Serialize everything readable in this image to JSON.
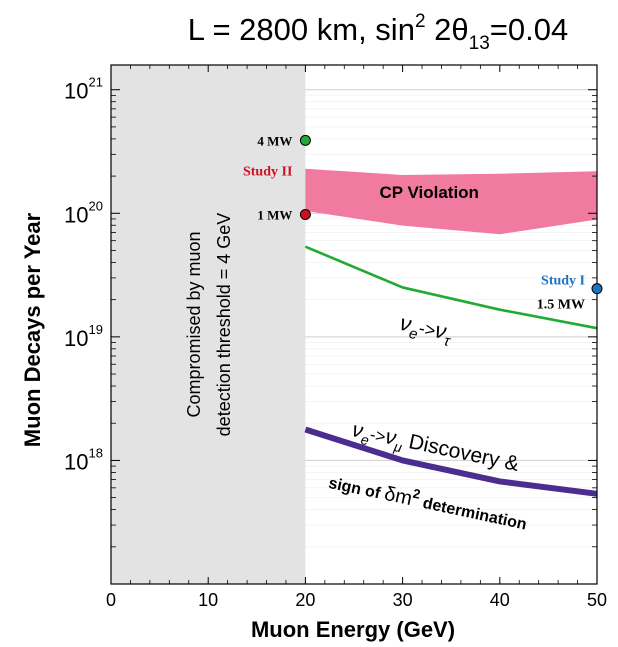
{
  "chart_data": {
    "type": "area",
    "title_main": "L = 2800 km, sin",
    "title_sup": "2",
    "title_mid": " 2θ",
    "title_sub": "13",
    "title_end": "=0.04",
    "xlabel": "Muon Energy  (GeV)",
    "ylabel": "Muon Decays per Year",
    "xlim": [
      0,
      50
    ],
    "ylim_log10": [
      17,
      21.2
    ],
    "x_ticks": [
      "0",
      "10",
      "20",
      "30",
      "40",
      "50"
    ],
    "y_ticks": [
      {
        "base": "10",
        "exp": "21",
        "value": 21
      },
      {
        "base": "10",
        "exp": "20",
        "value": 20
      },
      {
        "base": "10",
        "exp": "19",
        "value": 19
      },
      {
        "base": "10",
        "exp": "18",
        "value": 18
      }
    ],
    "excluded_region": {
      "x_range": [
        0,
        20
      ],
      "label_line1": "Compromised by muon",
      "label_line2": "detection threshold = 4 GeV"
    },
    "cp_violation_band": {
      "label": "CP  Violation",
      "x": [
        20,
        30,
        40,
        50
      ],
      "upper_log10": [
        20.36,
        20.31,
        20.32,
        20.34
      ],
      "lower_log10": [
        20.02,
        19.9,
        19.83,
        19.95
      ]
    },
    "series": [
      {
        "id": "nue_nutau",
        "label_main": "ν",
        "label_sub1": "e",
        "label_arrow": "->",
        "label_main2": "ν",
        "label_sub2": "τ",
        "x": [
          20,
          30,
          40,
          50
        ],
        "y_log10": [
          19.73,
          19.4,
          19.22,
          19.07
        ],
        "color": "#22aa33"
      },
      {
        "id": "nue_numu",
        "label_main": "ν",
        "label_sub1": "e",
        "label_arrow": "->",
        "label_main2": "ν",
        "label_sub2": "μ",
        "label_rest": " Discovery &",
        "label_line2_a": "sign of ",
        "label_line2_b": "δm",
        "label_line2_sup": "2",
        "label_line2_c": " determination",
        "x": [
          20,
          30,
          40,
          50
        ],
        "y_log10": [
          18.25,
          18.0,
          17.83,
          17.73
        ],
        "color": "#4a2d8f"
      }
    ],
    "markers": [
      {
        "id": "mw4",
        "x": 20,
        "y_log10": 20.59,
        "color": "#22aa33",
        "label": "4 MW"
      },
      {
        "id": "mw1",
        "x": 20,
        "y_log10": 19.99,
        "color": "#cc1122",
        "label": "1 MW",
        "tag": "Study II",
        "tag_color": "#cc1122"
      },
      {
        "id": "mw15",
        "x": 50,
        "y_log10": 19.39,
        "color": "#1e73be",
        "label": "1.5 MW",
        "tag": "Study I",
        "tag_color": "#1e73be"
      }
    ],
    "colors": {
      "band": "#f07aa0",
      "excluded": "#e3e3e3",
      "grid": "#cfcfcf"
    },
    "grid": true
  }
}
